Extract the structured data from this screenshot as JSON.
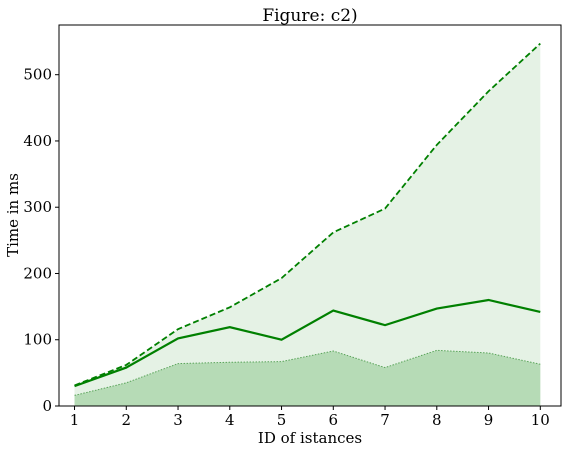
{
  "chart_data": {
    "type": "line",
    "title": "Figure: c2)",
    "xlabel": "ID of istances",
    "ylabel": "Time in ms",
    "x": [
      1,
      2,
      3,
      4,
      5,
      6,
      7,
      8,
      9,
      10
    ],
    "xlim": [
      0.7,
      10.4
    ],
    "ylim": [
      0,
      575
    ],
    "yticks": [
      0,
      100,
      200,
      300,
      400,
      500
    ],
    "grid": false,
    "series": [
      {
        "role": "upper",
        "style": "dashed",
        "values": [
          31,
          62,
          116,
          149,
          193,
          262,
          298,
          394,
          475,
          547
        ]
      },
      {
        "role": "mean",
        "style": "solid",
        "values": [
          30,
          58,
          102,
          119,
          100,
          144,
          122,
          147,
          160,
          142
        ]
      },
      {
        "role": "lower",
        "style": "dotted",
        "values": [
          16,
          35,
          64,
          66,
          67,
          83,
          58,
          84,
          80,
          63
        ]
      }
    ],
    "colors": {
      "line": "#008000",
      "upper_fill": "#e5f2e5",
      "lower_fill": "#b6dbb6",
      "lower_edge": "#5aa45a"
    }
  }
}
